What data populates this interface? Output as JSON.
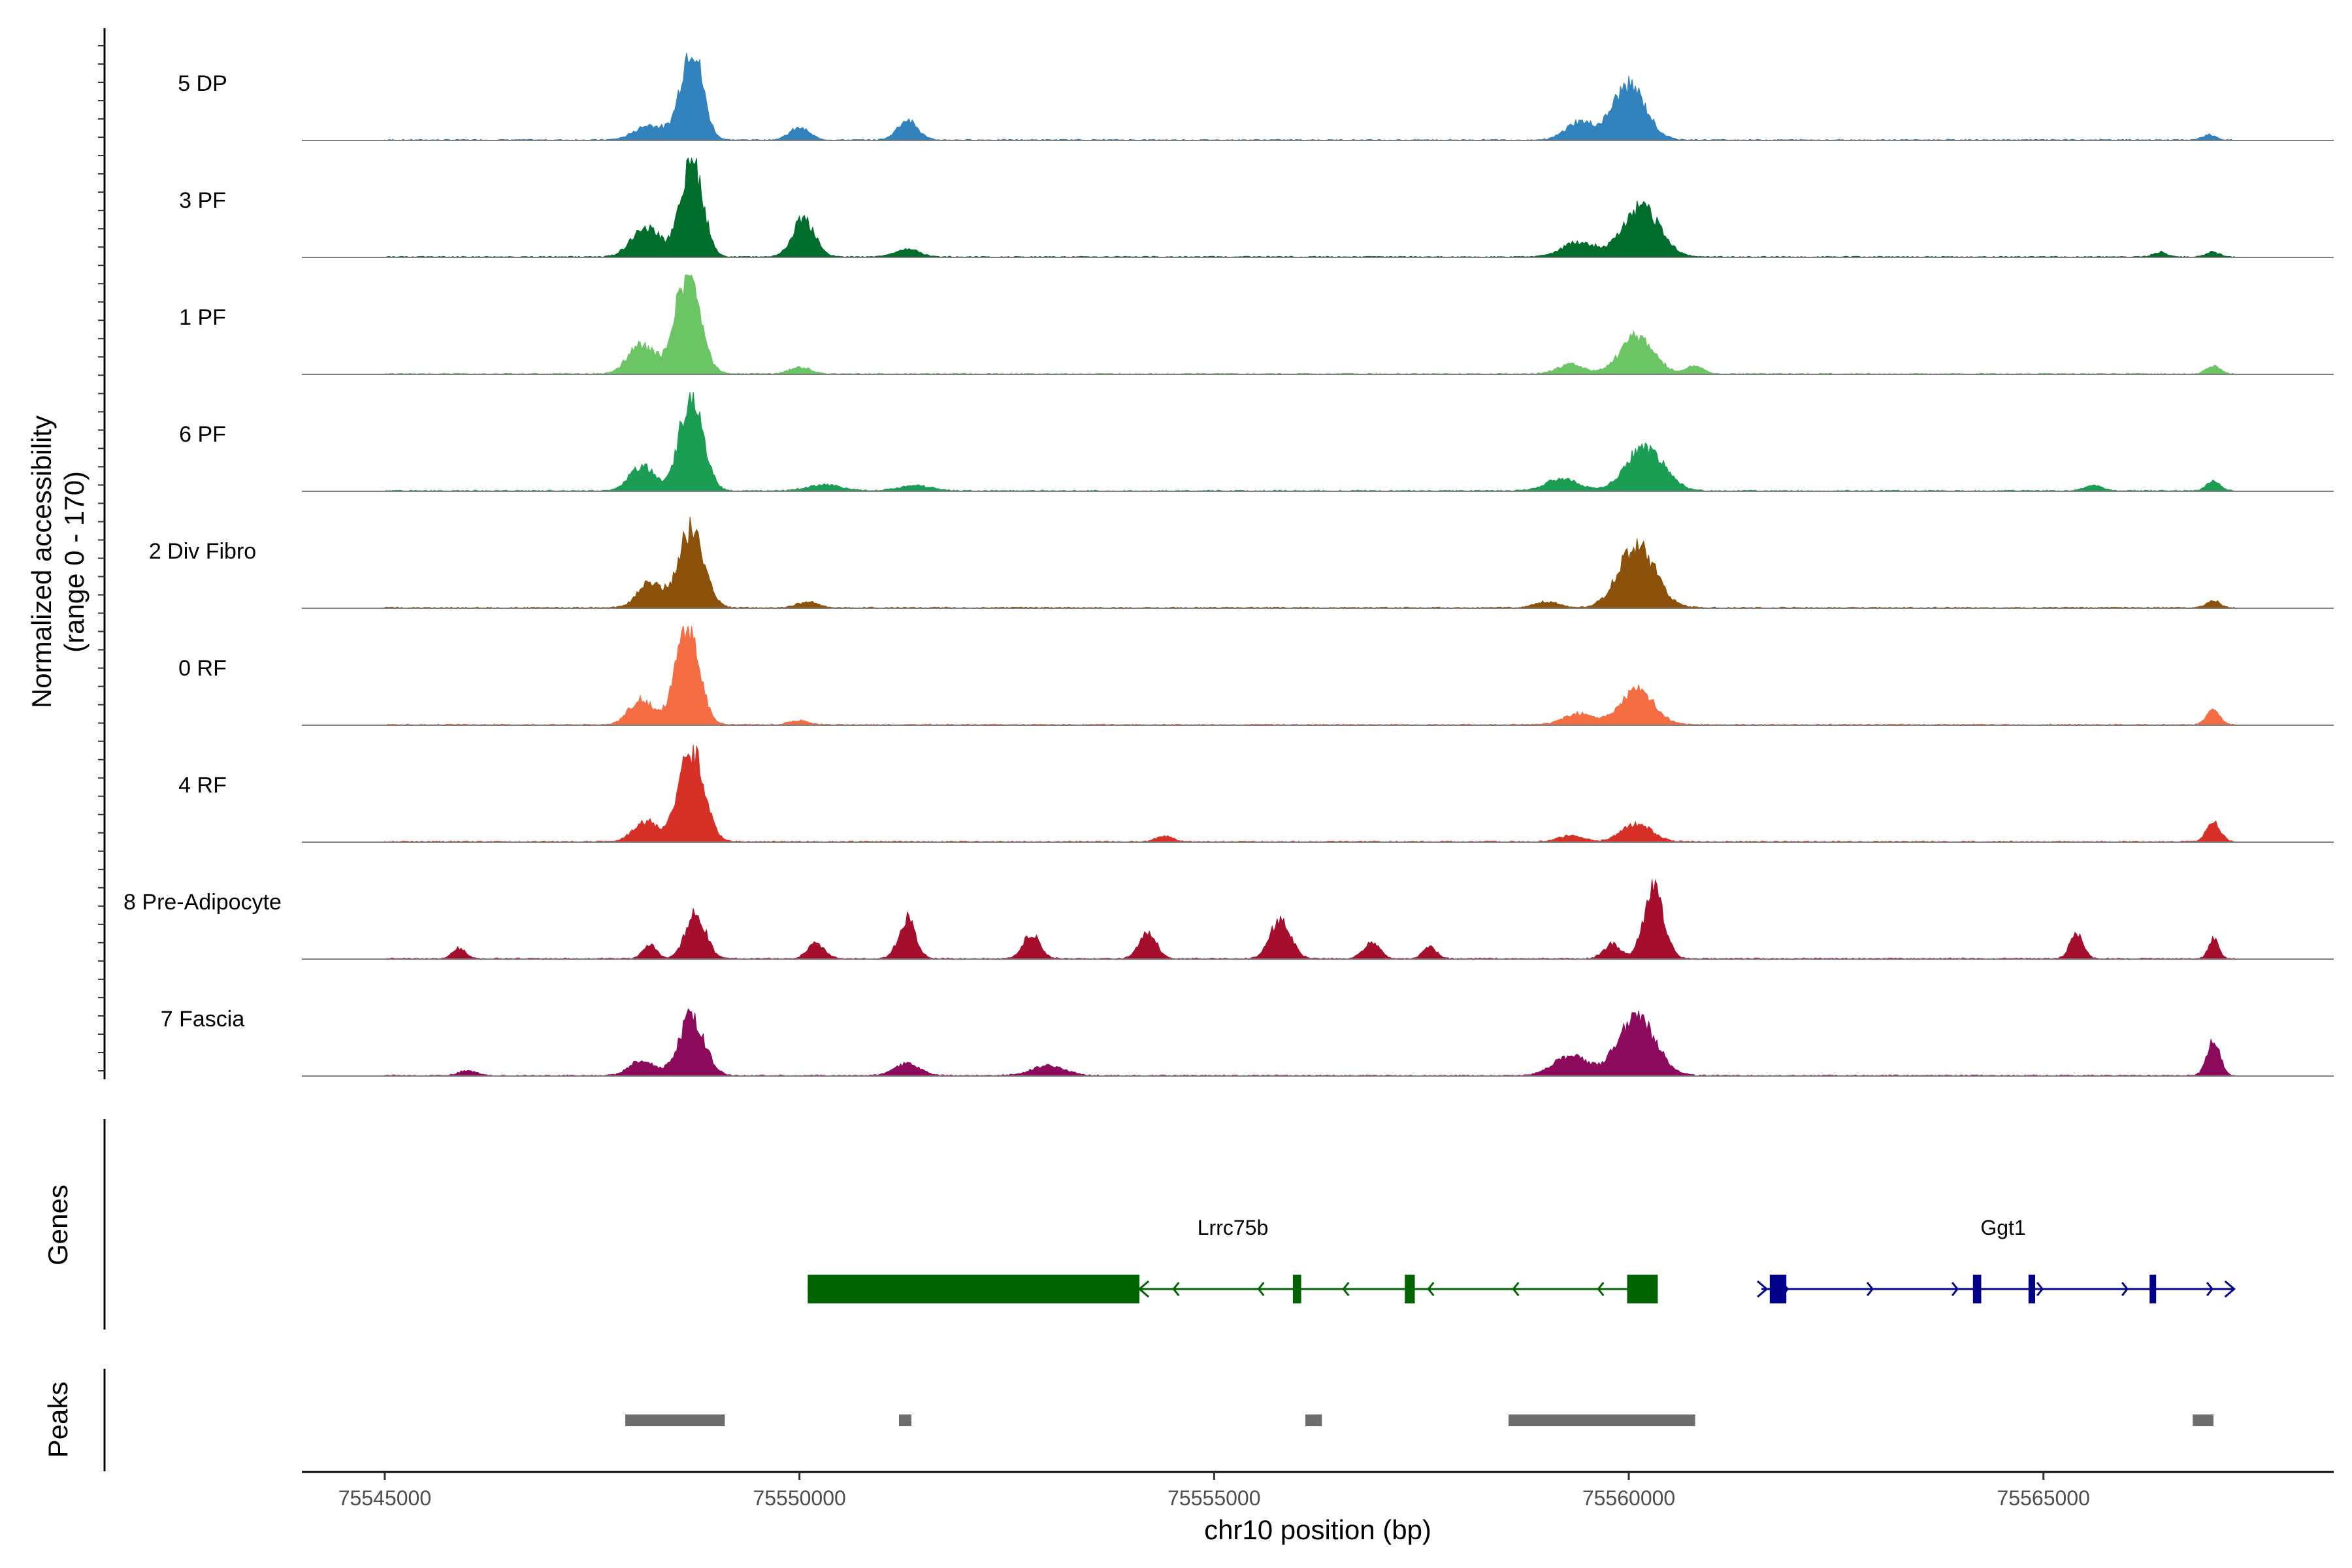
{
  "chart_data": {
    "type": "area",
    "title": "",
    "ylabel_line1": "Normalized accessibility",
    "ylabel_line2": "(range 0 - 170)",
    "yrange": [
      0,
      170
    ],
    "xlabel": "chr10 position (bp)",
    "xlim": [
      75544000,
      75568500
    ],
    "xticks": [
      75545000,
      75550000,
      75555000,
      75560000,
      75565000
    ],
    "xtick_labels": [
      "75545000",
      "75550000",
      "75555000",
      "75560000",
      "75565000"
    ],
    "region": [
      75545000,
      75567300
    ],
    "tracks": [
      {
        "name": "5 DP",
        "color": "#3182bd",
        "peaks": [
          [
            75548700,
            0.95,
            130
          ],
          [
            75548200,
            0.15,
            180
          ],
          [
            75550000,
            0.12,
            120
          ],
          [
            75551300,
            0.2,
            120
          ],
          [
            75560000,
            0.55,
            200
          ],
          [
            75559400,
            0.18,
            160
          ],
          [
            75567000,
            0.05,
            80
          ]
        ]
      },
      {
        "name": "3 PF",
        "color": "#006d2c",
        "peaks": [
          [
            75548700,
            1.0,
            130
          ],
          [
            75548150,
            0.3,
            170
          ],
          [
            75550050,
            0.38,
            130
          ],
          [
            75551300,
            0.08,
            140
          ],
          [
            75560150,
            0.5,
            220
          ],
          [
            75559400,
            0.15,
            200
          ],
          [
            75566400,
            0.05,
            80
          ],
          [
            75567050,
            0.05,
            80
          ]
        ]
      },
      {
        "name": "1 PF",
        "color": "#6cc565",
        "peaks": [
          [
            75548650,
            1.0,
            150
          ],
          [
            75548100,
            0.3,
            160
          ],
          [
            75550000,
            0.07,
            120
          ],
          [
            75560100,
            0.38,
            200
          ],
          [
            75559300,
            0.1,
            150
          ],
          [
            75560800,
            0.08,
            100
          ],
          [
            75567050,
            0.08,
            80
          ]
        ]
      },
      {
        "name": "6 PF",
        "color": "#1b9e53",
        "peaks": [
          [
            75548700,
            1.0,
            140
          ],
          [
            75548100,
            0.25,
            150
          ],
          [
            75550300,
            0.06,
            200
          ],
          [
            75551400,
            0.05,
            200
          ],
          [
            75560200,
            0.45,
            220
          ],
          [
            75559200,
            0.12,
            200
          ],
          [
            75565600,
            0.06,
            100
          ],
          [
            75567050,
            0.1,
            80
          ]
        ]
      },
      {
        "name": "2 Div Fibro",
        "color": "#8c510a",
        "peaks": [
          [
            75548700,
            0.8,
            150
          ],
          [
            75548200,
            0.25,
            150
          ],
          [
            75550100,
            0.06,
            120
          ],
          [
            75560100,
            0.62,
            220
          ],
          [
            75559000,
            0.06,
            150
          ],
          [
            75567050,
            0.07,
            80
          ]
        ]
      },
      {
        "name": "0 RF",
        "color": "#f46d43",
        "peaks": [
          [
            75548650,
            1.0,
            140
          ],
          [
            75548100,
            0.25,
            150
          ],
          [
            75550000,
            0.04,
            120
          ],
          [
            75560100,
            0.35,
            200
          ],
          [
            75559400,
            0.12,
            180
          ],
          [
            75567050,
            0.15,
            80
          ]
        ]
      },
      {
        "name": "4 RF",
        "color": "#d73027",
        "peaks": [
          [
            75548700,
            0.92,
            150
          ],
          [
            75548150,
            0.2,
            150
          ],
          [
            75554400,
            0.06,
            100
          ],
          [
            75560100,
            0.18,
            180
          ],
          [
            75559300,
            0.06,
            150
          ],
          [
            75567050,
            0.2,
            80
          ]
        ]
      },
      {
        "name": "8 Pre-Adipocyte",
        "color": "#a50f2d",
        "peaks": [
          [
            75548750,
            0.45,
            120
          ],
          [
            75548200,
            0.15,
            80
          ],
          [
            75551300,
            0.4,
            100
          ],
          [
            75550200,
            0.15,
            100
          ],
          [
            75552800,
            0.25,
            100
          ],
          [
            75554200,
            0.28,
            100
          ],
          [
            75555800,
            0.4,
            120
          ],
          [
            75556900,
            0.15,
            100
          ],
          [
            75557600,
            0.12,
            80
          ],
          [
            75559800,
            0.15,
            100
          ],
          [
            75560300,
            0.7,
            120
          ],
          [
            75565400,
            0.25,
            80
          ],
          [
            75567050,
            0.2,
            60
          ],
          [
            75545900,
            0.1,
            80
          ]
        ]
      },
      {
        "name": "7 Fascia",
        "color": "#8c0a5b",
        "peaks": [
          [
            75548700,
            0.6,
            150
          ],
          [
            75548100,
            0.15,
            150
          ],
          [
            75551300,
            0.12,
            150
          ],
          [
            75553000,
            0.1,
            200
          ],
          [
            75560100,
            0.6,
            220
          ],
          [
            75559300,
            0.2,
            200
          ],
          [
            75567050,
            0.35,
            80
          ],
          [
            75546000,
            0.05,
            100
          ]
        ]
      }
    ],
    "genes_label": "Genes",
    "genes": [
      {
        "name": "Lrrc75b",
        "strand": "-",
        "color": "#006400",
        "start": 75550100,
        "end": 75560350,
        "exons": [
          [
            75550100,
            75554100
          ],
          [
            75555950,
            75556050
          ],
          [
            75557300,
            75557420
          ],
          [
            75559980,
            75560350
          ]
        ]
      },
      {
        "name": "Ggt1",
        "strand": "+",
        "color": "#00008b",
        "start": 75561600,
        "end": 75567300,
        "exons": [
          [
            75561700,
            75561900
          ],
          [
            75564150,
            75564250
          ],
          [
            75564820,
            75564900
          ],
          [
            75566280,
            75566320
          ]
        ]
      }
    ],
    "peaks_label": "Peaks",
    "peak_regions": [
      [
        75547900,
        75549100
      ],
      [
        75551200,
        75551350
      ],
      [
        75556100,
        75556300
      ],
      [
        75558550,
        75560800
      ],
      [
        75566800,
        75567050
      ]
    ]
  }
}
